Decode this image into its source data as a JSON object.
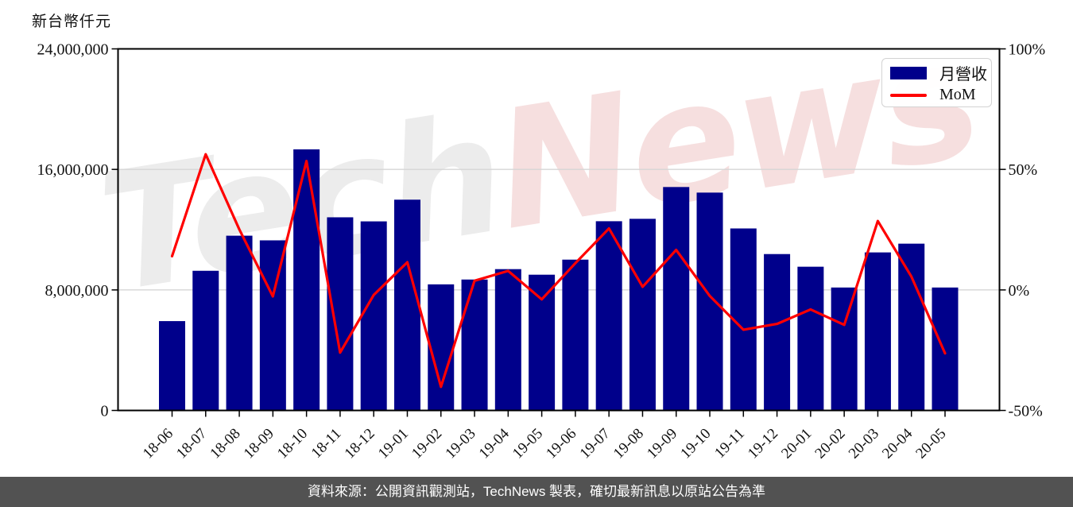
{
  "axes": {
    "left_title": "新台幣仟元"
  },
  "legend": {
    "bar_label": "月營收",
    "line_label": "MoM"
  },
  "watermark": {
    "part1": "Tech",
    "part2": "News"
  },
  "footer": {
    "text": "資料來源：公開資訊觀測站，TechNews 製表，確切最新訊息以原站公告為準"
  },
  "chart_data": {
    "type": "combo",
    "categories": [
      "18-06",
      "18-07",
      "18-08",
      "18-09",
      "18-10",
      "18-11",
      "18-12",
      "19-01",
      "19-02",
      "19-03",
      "19-04",
      "19-05",
      "19-06",
      "19-07",
      "19-08",
      "19-09",
      "19-10",
      "19-11",
      "19-12",
      "20-01",
      "20-02",
      "20-03",
      "20-04",
      "20-05"
    ],
    "series": [
      {
        "name": "月營收",
        "type": "bar",
        "axis": "left",
        "unit": "新台幣仟元",
        "color": "#00008b",
        "values": [
          5930000,
          9270000,
          11600000,
          11290000,
          17330000,
          12820000,
          12550000,
          13990000,
          8370000,
          8690000,
          9380000,
          9010000,
          10010000,
          12560000,
          12720000,
          14830000,
          14460000,
          12080000,
          10380000,
          9540000,
          8160000,
          10490000,
          11070000,
          8160000
        ]
      },
      {
        "name": "MoM",
        "type": "line",
        "axis": "right",
        "unit": "%",
        "color": "#ff0000",
        "values": [
          14.0,
          56.3,
          25.1,
          -2.7,
          53.5,
          -26.0,
          -2.1,
          11.5,
          -40.2,
          3.8,
          7.9,
          -3.9,
          11.1,
          25.5,
          1.3,
          16.6,
          -2.5,
          -16.5,
          -14.1,
          -8.1,
          -14.5,
          28.6,
          5.5,
          -26.3
        ]
      }
    ],
    "y_left": {
      "min": 0,
      "max": 24000000,
      "ticks": [
        0,
        8000000,
        16000000,
        24000000
      ],
      "tick_labels": [
        "0",
        "8,000,000",
        "16,000,000",
        "24,000,000"
      ]
    },
    "y_right": {
      "min": -50,
      "max": 100,
      "ticks": [
        -50,
        0,
        50,
        100
      ],
      "tick_labels": [
        "-50%",
        "0%",
        "50%",
        "100%"
      ]
    },
    "grid": {
      "horizontal_at": [
        8000000,
        16000000
      ],
      "color": "#d6d6d6"
    },
    "legend_position": "top-right"
  }
}
